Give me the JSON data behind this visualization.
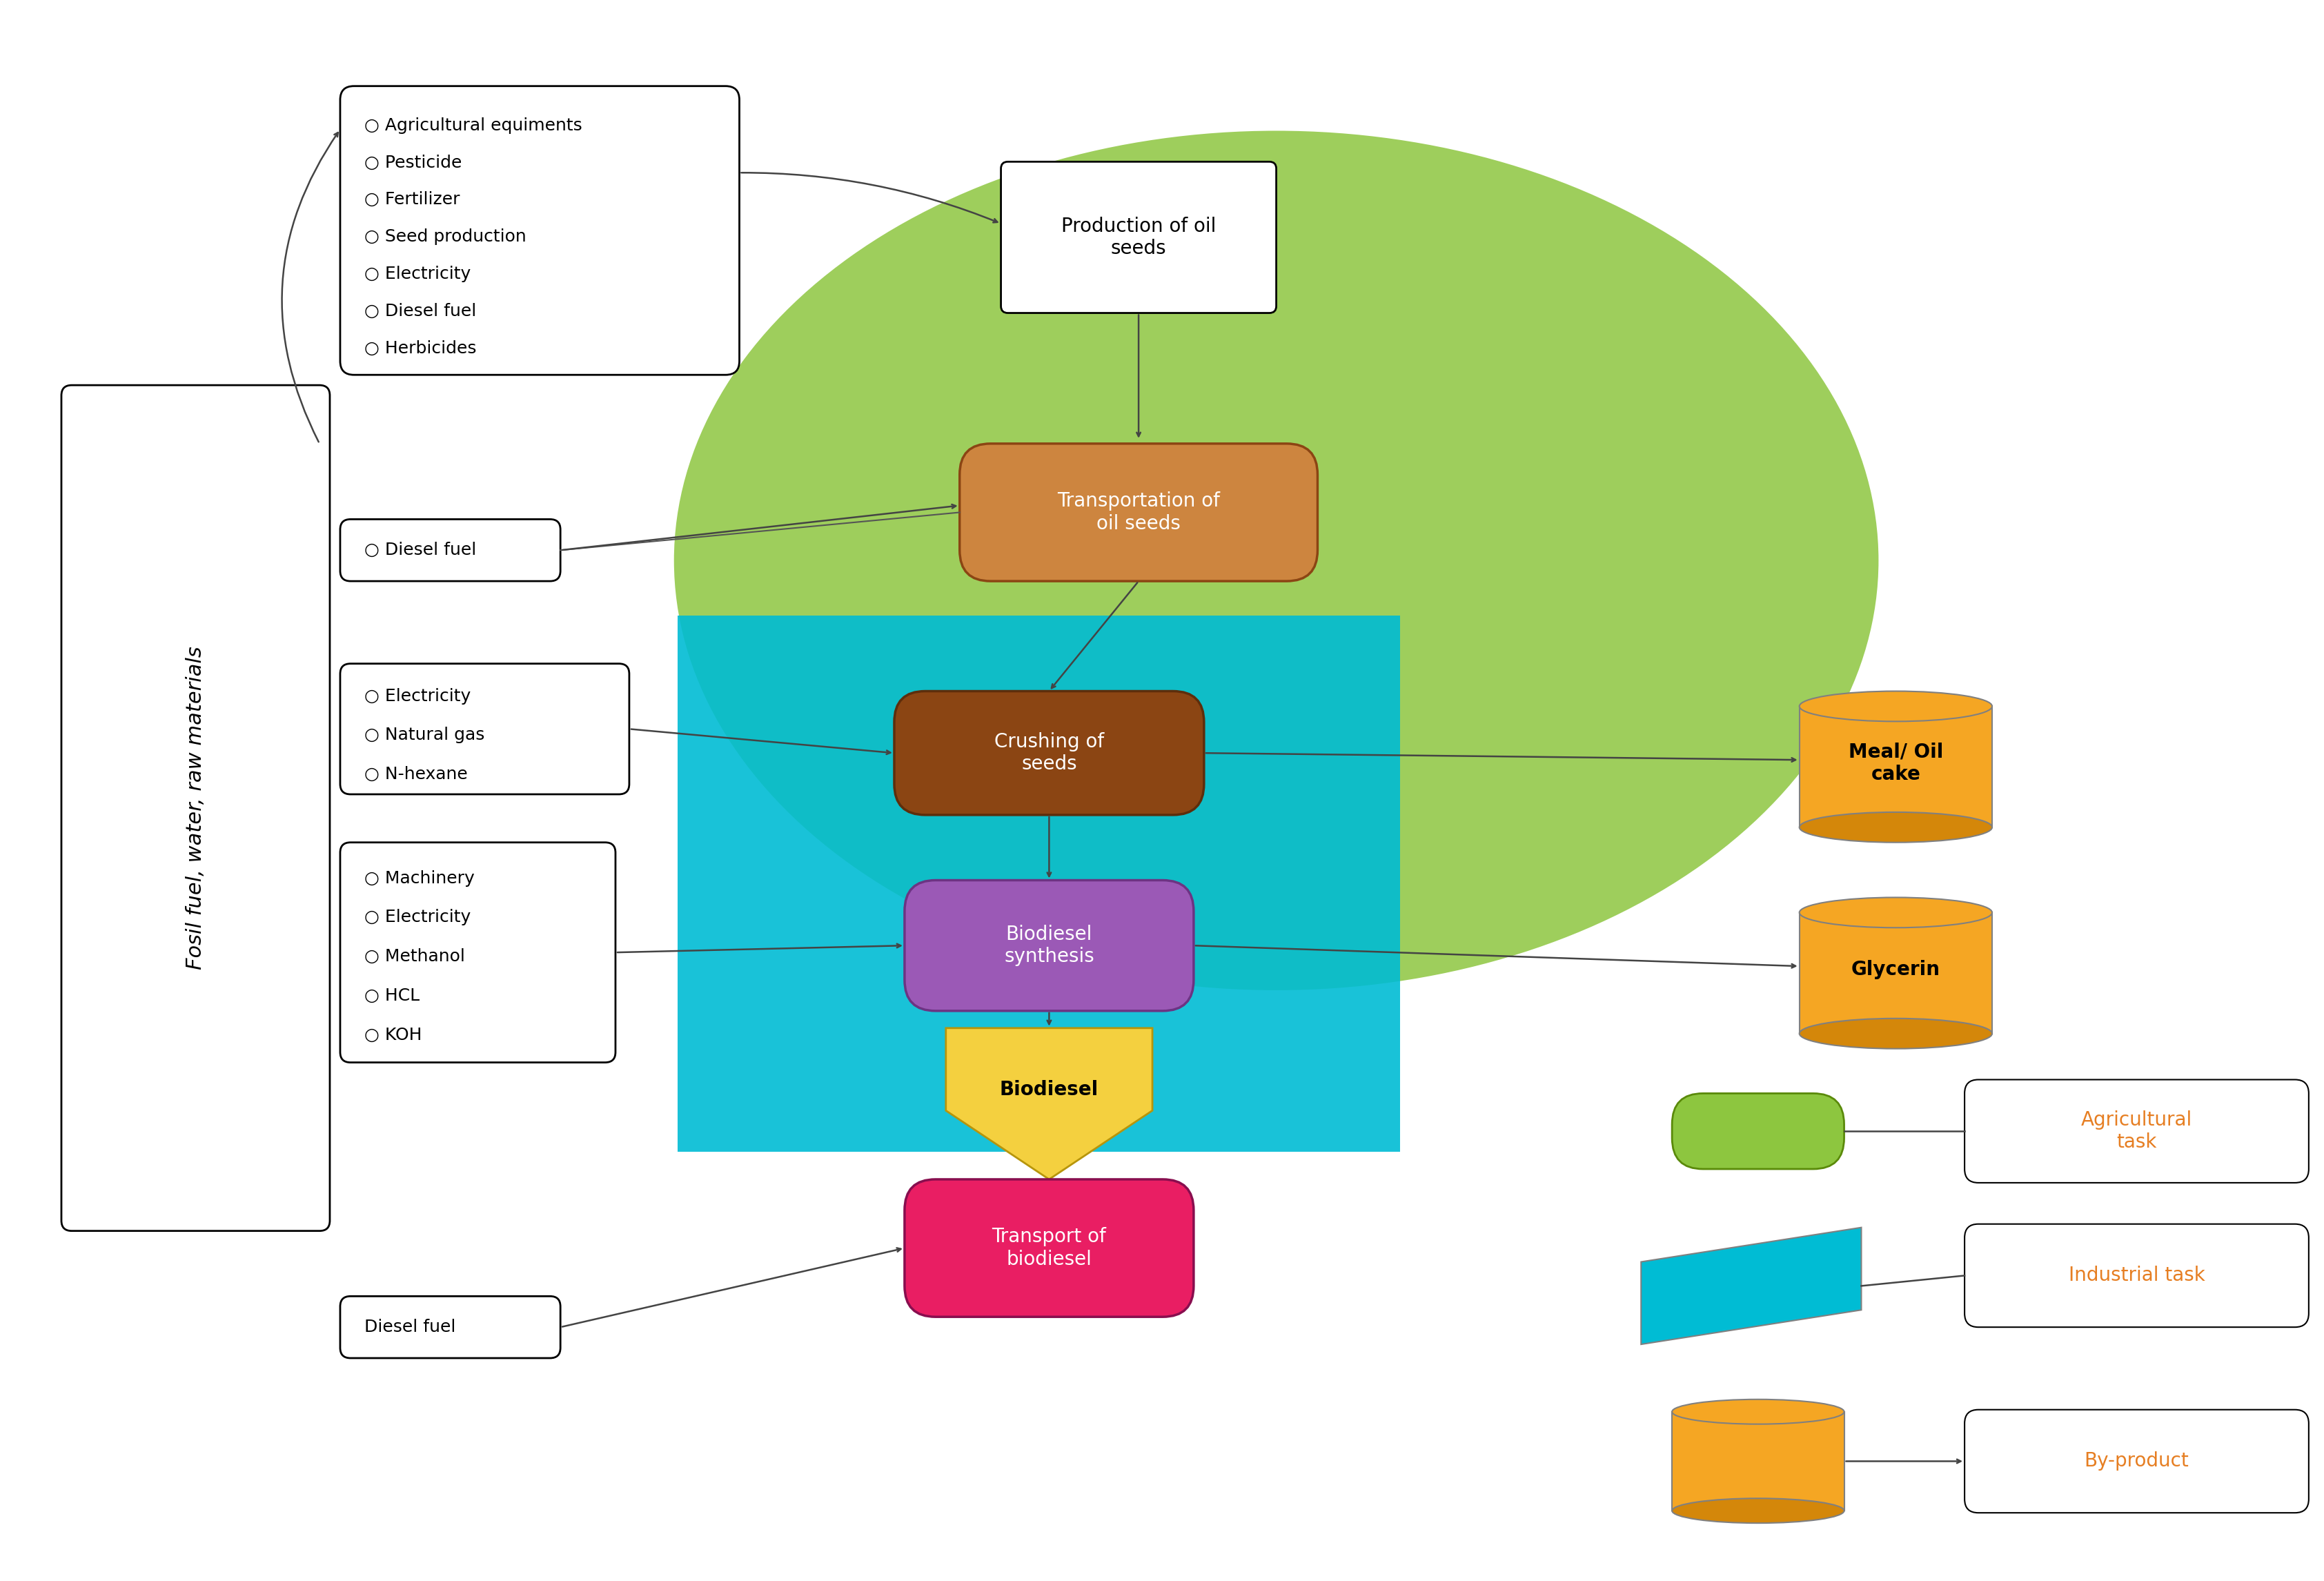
{
  "fig_width": 33.68,
  "fig_height": 22.91,
  "bg_color": "#ffffff",
  "green_blob_color": "#8dc63f",
  "cyan_rect_color": "#00bcd4",
  "orange_cyl_color": "#f5a623",
  "prod_box_color": "#ffffff",
  "transport_box_color": "#cd853f",
  "crushing_box_color": "#8b4513",
  "biodiesel_synth_color": "#9b59b6",
  "biodiesel_shape_color": "#f4d03f",
  "transport_bio_color": "#e91e63",
  "text_color_dark": "#5d3a1a",
  "text_color_orange": "#e67e22",
  "arrow_color": "#555555",
  "label_box_lines": [
    "Agricultural equiments",
    "Pesticide",
    "Fertilizer",
    "Seed production",
    "Electricity",
    "Diesel fuel",
    "Herbicides"
  ],
  "label_diesel1": "Diesel fuel",
  "label_elec": [
    "Electricity",
    "Natural gas",
    "N-hexane"
  ],
  "label_machinery": [
    "Machinery",
    "Electricity",
    "Methanol",
    "HCL",
    "KOH"
  ],
  "label_diesel2": "Diesel fuel",
  "fosil_label": "Fosil fuel, water, raw materials",
  "prod_label": "Production of oil\nseeds",
  "transport_label": "Transportation of\noil seeds",
  "crushing_label": "Crushing of\nseeds",
  "biodiesel_synth_label": "Biodiesel\nsynthesis",
  "biodiesel_label": "Biodiesel",
  "transport_bio_label": "Transport of\nbiodiesel",
  "meal_label": "Meal/ Oil\ncake",
  "glycerin_label": "Glycerin",
  "agri_task_label": "Agricultural\ntask",
  "industrial_label": "Industrial task",
  "byproduct_label": "By-product"
}
